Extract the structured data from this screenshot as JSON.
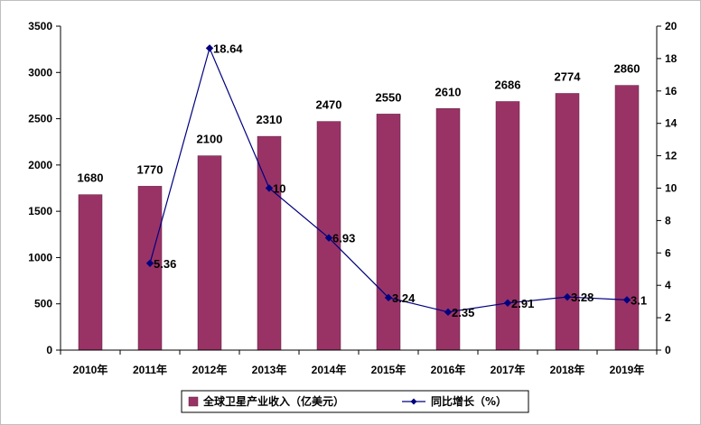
{
  "chart_data": {
    "type": "bar+line",
    "title": "",
    "categories": [
      "2010年",
      "2011年",
      "2012年",
      "2013年",
      "2014年",
      "2015年",
      "2016年",
      "2017年",
      "2018年",
      "2019年"
    ],
    "series": [
      {
        "name": "全球卫星产业收入（亿美元）",
        "type": "bar",
        "axis": "left",
        "color": "#993366",
        "values": [
          1680,
          1770,
          2100,
          2310,
          2470,
          2550,
          2610,
          2686,
          2774,
          2860
        ],
        "labels": [
          "1680",
          "1770",
          "2100",
          "2310",
          "2470",
          "2550",
          "2610",
          "2686",
          "2774",
          "2860"
        ]
      },
      {
        "name": "同比增长（%）",
        "type": "line",
        "axis": "right",
        "color": "#000080",
        "values": [
          null,
          5.36,
          18.64,
          10,
          6.93,
          3.24,
          2.35,
          2.91,
          3.28,
          3.1
        ],
        "labels": [
          "",
          "5.36",
          "18.64",
          "10",
          "6.93",
          "3.24",
          "2.35",
          "2.91",
          "3.28",
          "3.1"
        ]
      }
    ],
    "y_left": {
      "min": 0,
      "max": 3500,
      "step": 500,
      "ticks": [
        "0",
        "500",
        "1000",
        "1500",
        "2000",
        "2500",
        "3000",
        "3500"
      ]
    },
    "y_right": {
      "min": 0,
      "max": 20,
      "step": 2,
      "ticks": [
        "0",
        "2",
        "4",
        "6",
        "8",
        "10",
        "12",
        "14",
        "16",
        "18",
        "20"
      ]
    },
    "grid": false,
    "legend_position": "bottom"
  }
}
